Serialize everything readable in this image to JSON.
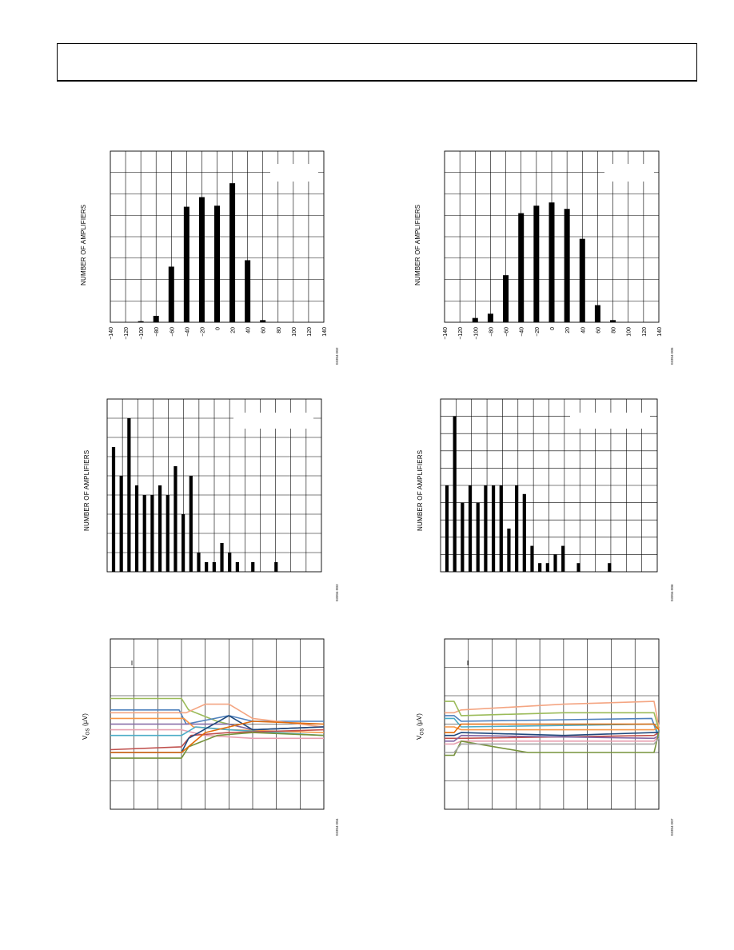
{
  "chart_data": [
    {
      "id": "hist-1",
      "type": "bar",
      "ylabel": "NUMBER OF AMPLIFIERS",
      "xlabel": "",
      "x_ticks": [
        "−140",
        "−120",
        "−100",
        "−80",
        "−60",
        "−40",
        "−20",
        "0",
        "20",
        "40",
        "60",
        "80",
        "100",
        "120",
        "140"
      ],
      "xlim": [
        -140,
        140
      ],
      "ylim": [
        0,
        8
      ],
      "grid": true,
      "categories": [
        -100,
        -80,
        -60,
        -40,
        -20,
        0,
        20,
        40,
        60
      ],
      "values": [
        0.05,
        0.3,
        2.6,
        5.4,
        5.85,
        5.45,
        6.5,
        2.9,
        0.1
      ],
      "figure_id": "03304-002",
      "legend_box": true
    },
    {
      "id": "hist-2",
      "type": "bar",
      "ylabel": "NUMBER OF AMPLIFIERS",
      "xlabel": "",
      "x_ticks": [
        "−140",
        "−120",
        "−100",
        "−80",
        "−60",
        "−40",
        "−20",
        "0",
        "20",
        "40",
        "60",
        "80",
        "100",
        "120",
        "140"
      ],
      "xlim": [
        -140,
        140
      ],
      "ylim": [
        0,
        8
      ],
      "grid": true,
      "categories": [
        -100,
        -80,
        -60,
        -40,
        -20,
        0,
        20,
        40,
        60,
        80
      ],
      "values": [
        0.2,
        0.4,
        2.2,
        5.1,
        5.45,
        5.6,
        5.3,
        3.9,
        0.8,
        0.1
      ],
      "figure_id": "03304-005",
      "legend_box": true
    },
    {
      "id": "hist-3",
      "type": "bar",
      "ylabel": "NUMBER OF AMPLIFIERS",
      "xlabel": "",
      "ylim": [
        0,
        18
      ],
      "grid": true,
      "values": [
        13,
        10,
        16,
        9,
        8,
        8,
        9,
        8,
        11,
        6,
        10,
        2,
        1,
        1,
        3,
        2,
        1,
        0,
        1,
        0,
        0,
        1
      ],
      "figure_id": "03304-003",
      "legend_box": true
    },
    {
      "id": "hist-4",
      "type": "bar",
      "ylabel": "NUMBER OF AMPLIFIERS",
      "xlabel": "",
      "ylim": [
        0,
        20
      ],
      "grid": true,
      "values": [
        10,
        18,
        8,
        10,
        8,
        10,
        10,
        10,
        5,
        10,
        9,
        3,
        1,
        1,
        2,
        3,
        0,
        1,
        0,
        0,
        0,
        1
      ],
      "figure_id": "03304-006",
      "legend_box": true
    },
    {
      "id": "trace-1",
      "type": "line",
      "ylabel": "V",
      "ylabel_sub": "OS",
      "ylabel_unit": " (µV)",
      "xlabel": "",
      "grid": true,
      "figure_id": "03304-004",
      "xlim": [
        0,
        9
      ],
      "ylim": [
        0,
        6
      ],
      "series": [
        {
          "color": "#9bbb59",
          "values": [
            [
              0,
              3.9
            ],
            [
              3,
              3.9
            ],
            [
              3.3,
              3.5
            ],
            [
              4.5,
              3.1
            ],
            [
              6,
              2.8
            ],
            [
              9,
              2.9
            ]
          ]
        },
        {
          "color": "#4f81bd",
          "values": [
            [
              0,
              3.5
            ],
            [
              2.9,
              3.5
            ],
            [
              3.2,
              3.0
            ],
            [
              5,
              3.3
            ],
            [
              6,
              3.1
            ],
            [
              9,
              3.1
            ]
          ]
        },
        {
          "color": "#f4a582",
          "values": [
            [
              0,
              3.4
            ],
            [
              3.2,
              3.4
            ],
            [
              4,
              3.7
            ],
            [
              5,
              3.7
            ],
            [
              6,
              3.2
            ],
            [
              9,
              2.9
            ]
          ]
        },
        {
          "color": "#8064a2",
          "values": [
            [
              0,
              3.0
            ],
            [
              3,
              3.0
            ],
            [
              5,
              3.0
            ],
            [
              6,
              2.8
            ],
            [
              9,
              2.9
            ]
          ]
        },
        {
          "color": "#f79646",
          "values": [
            [
              0,
              3.2
            ],
            [
              3.1,
              3.2
            ],
            [
              3.5,
              2.9
            ],
            [
              5,
              2.8
            ],
            [
              9,
              2.7
            ]
          ]
        },
        {
          "color": "#e8a0b0",
          "values": [
            [
              0,
              2.8
            ],
            [
              3,
              2.8
            ],
            [
              4,
              2.6
            ],
            [
              6,
              2.5
            ],
            [
              9,
              2.5
            ]
          ]
        },
        {
          "color": "#4bacc6",
          "values": [
            [
              0,
              2.6
            ],
            [
              3,
              2.6
            ],
            [
              3.6,
              2.9
            ],
            [
              5,
              2.8
            ],
            [
              9,
              2.6
            ]
          ]
        },
        {
          "color": "#c0504d",
          "values": [
            [
              0,
              2.1
            ],
            [
              3,
              2.2
            ],
            [
              3.4,
              2.6
            ],
            [
              5,
              2.7
            ],
            [
              9,
              2.8
            ]
          ]
        },
        {
          "color": "#1f497d",
          "values": [
            [
              0,
              2.0
            ],
            [
              3,
              2.0
            ],
            [
              3.3,
              2.5
            ],
            [
              5,
              3.3
            ],
            [
              6,
              2.8
            ],
            [
              9,
              2.9
            ]
          ]
        },
        {
          "color": "#77933c",
          "values": [
            [
              0,
              1.8
            ],
            [
              3,
              1.8
            ],
            [
              3.3,
              2.2
            ],
            [
              4.5,
              2.6
            ],
            [
              6,
              2.7
            ],
            [
              9,
              2.6
            ]
          ]
        },
        {
          "color": "#e46c0a",
          "values": [
            [
              0,
              2.0
            ],
            [
              3,
              2.0
            ],
            [
              4,
              2.7
            ],
            [
              6,
              3.1
            ],
            [
              9,
              3.0
            ]
          ]
        }
      ]
    },
    {
      "id": "trace-2",
      "type": "line",
      "ylabel": "V",
      "ylabel_sub": "OS",
      "ylabel_unit": " (µV)",
      "xlabel": "",
      "grid": true,
      "figure_id": "03304-007",
      "xlim": [
        0,
        9
      ],
      "ylim": [
        0,
        6
      ],
      "series": [
        {
          "color": "#f4a582",
          "values": [
            [
              0,
              3.4
            ],
            [
              0.4,
              3.4
            ],
            [
              0.7,
              3.5
            ],
            [
              5,
              3.7
            ],
            [
              8.8,
              3.8
            ],
            [
              9,
              2.9
            ]
          ]
        },
        {
          "color": "#9bbb59",
          "values": [
            [
              0,
              3.8
            ],
            [
              0.4,
              3.8
            ],
            [
              0.7,
              3.3
            ],
            [
              5,
              3.4
            ],
            [
              8.8,
              3.4
            ],
            [
              9,
              2.8
            ]
          ]
        },
        {
          "color": "#4f81bd",
          "values": [
            [
              0,
              3.3
            ],
            [
              0.4,
              3.3
            ],
            [
              0.7,
              3.1
            ],
            [
              8.7,
              3.2
            ],
            [
              9,
              2.5
            ]
          ]
        },
        {
          "color": "#4bacc6",
          "values": [
            [
              0,
              3.2
            ],
            [
              0.4,
              3.2
            ],
            [
              0.7,
              2.9
            ],
            [
              8.8,
              3.0
            ],
            [
              9,
              2.6
            ]
          ]
        },
        {
          "color": "#c0504d",
          "values": [
            [
              0,
              2.5
            ],
            [
              0.4,
              2.5
            ],
            [
              0.7,
              2.5
            ],
            [
              8.8,
              2.6
            ],
            [
              9,
              2.7
            ]
          ]
        },
        {
          "color": "#1f497d",
          "values": [
            [
              0,
              2.6
            ],
            [
              0.4,
              2.6
            ],
            [
              0.7,
              2.7
            ],
            [
              5,
              2.6
            ],
            [
              8.8,
              2.7
            ],
            [
              9,
              2.7
            ]
          ]
        },
        {
          "color": "#f79646",
          "values": [
            [
              0,
              2.9
            ],
            [
              0.4,
              2.9
            ],
            [
              0.7,
              2.8
            ],
            [
              8.8,
              2.8
            ],
            [
              9,
              2.9
            ]
          ]
        },
        {
          "color": "#e46c0a",
          "values": [
            [
              0,
              2.7
            ],
            [
              0.4,
              2.7
            ],
            [
              0.7,
              3.0
            ],
            [
              8.8,
              3.0
            ],
            [
              9,
              2.8
            ]
          ]
        },
        {
          "color": "#8064a2",
          "values": [
            [
              0,
              2.4
            ],
            [
              0.4,
              2.4
            ],
            [
              0.7,
              2.6
            ],
            [
              8.8,
              2.5
            ],
            [
              9,
              2.6
            ]
          ]
        },
        {
          "color": "#e8a0b0",
          "values": [
            [
              0,
              2.3
            ],
            [
              0.4,
              2.3
            ],
            [
              0.7,
              2.4
            ],
            [
              8.8,
              2.4
            ],
            [
              9,
              2.6
            ]
          ]
        },
        {
          "color": "#77933c",
          "values": [
            [
              0,
              1.9
            ],
            [
              0.4,
              1.9
            ],
            [
              0.7,
              2.4
            ],
            [
              3.5,
              2.0
            ],
            [
              8.8,
              2.0
            ],
            [
              9,
              2.7
            ]
          ]
        },
        {
          "color": "#a6a6a6",
          "values": [
            [
              0,
              2.0
            ],
            [
              0.4,
              2.0
            ],
            [
              0.7,
              2.3
            ],
            [
              8.8,
              2.3
            ],
            [
              9,
              2.5
            ]
          ]
        }
      ]
    }
  ]
}
